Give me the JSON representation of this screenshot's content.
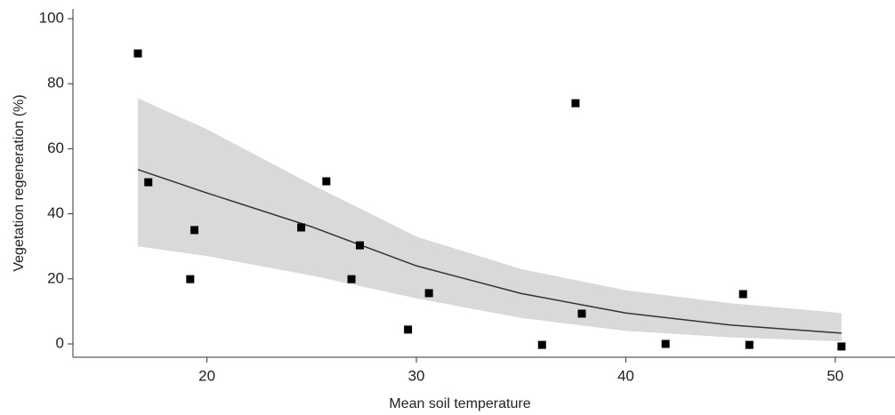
{
  "chart_data": {
    "type": "scatter",
    "x_label": "Mean soil temperature",
    "y_label": "Vegetation regeneration (%)",
    "xlim": [
      13.6,
      52.6
    ],
    "ylim": [
      -4.1,
      103
    ],
    "xticks": [
      20,
      30,
      40,
      50
    ],
    "yticks": [
      0,
      20,
      40,
      60,
      80,
      100
    ],
    "grid": false,
    "points": {
      "color": "#000000",
      "x": [
        16.7,
        17.2,
        19.4,
        19.2,
        24.5,
        25.7,
        27.3,
        26.9,
        29.6,
        30.6,
        36.0,
        37.6,
        37.9,
        41.9,
        45.6,
        45.9,
        50.3
      ],
      "values": [
        89.3,
        49.7,
        35.0,
        19.9,
        35.8,
        50.0,
        30.3,
        19.9,
        4.4,
        15.6,
        -0.3,
        74.0,
        9.3,
        0.0,
        15.3,
        -0.3,
        -0.8
      ]
    },
    "fit": {
      "color": "#333333",
      "x": [
        16.7,
        20,
        25,
        30,
        35,
        40,
        45,
        50.3
      ],
      "values": [
        53.6,
        46.4,
        36,
        24,
        15.5,
        9.5,
        5.8,
        3.3
      ]
    },
    "band": {
      "color": "#d9d9d9",
      "x": [
        16.7,
        20,
        25,
        30,
        35,
        40,
        45,
        50.3
      ],
      "upper": [
        75.5,
        66,
        49,
        33,
        23,
        16.5,
        12.5,
        9.5
      ],
      "lower": [
        30,
        27,
        21,
        14,
        8,
        4,
        2,
        0.8
      ]
    }
  }
}
